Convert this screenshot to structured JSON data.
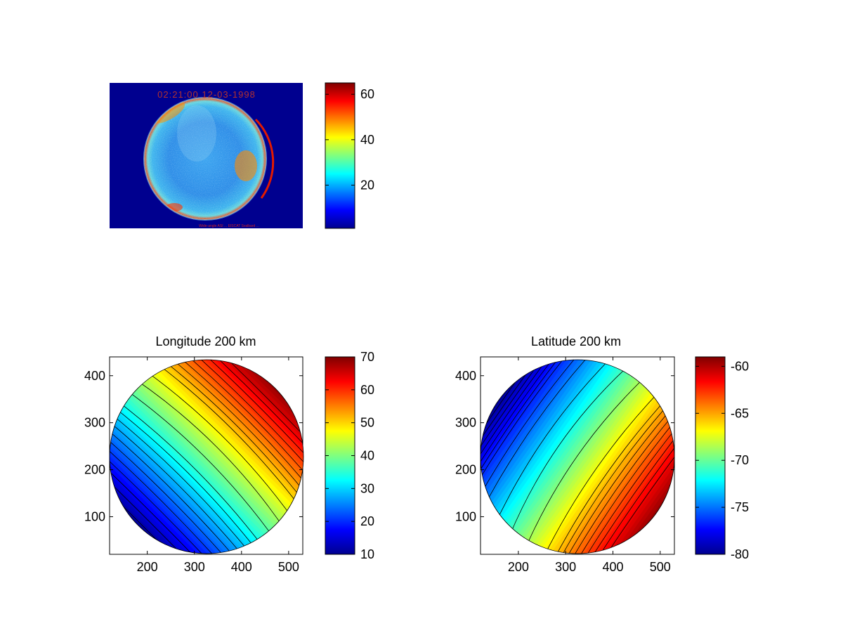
{
  "chart_data": [
    {
      "type": "heatmap",
      "panel": "all-sky-image",
      "title": "",
      "timestamp_text": "02:21:00 12-03-1998",
      "footer_text": "Wide-angle ASI ... EISCAT Svalbard ...",
      "colorbar": {
        "min": 1,
        "max": 65,
        "ticks": [
          20,
          40,
          60
        ]
      },
      "image_shows": "circular all-sky airglow/aurora image, mostly blue/cyan with red-orange arcs at the rim"
    },
    {
      "type": "heatmap",
      "panel": "longitude",
      "title": "Longitude 200 km",
      "xlim": [
        120,
        530
      ],
      "ylim": [
        20,
        440
      ],
      "xticks": [
        200,
        300,
        400,
        500
      ],
      "yticks": [
        100,
        200,
        300,
        400
      ],
      "colorbar": {
        "min": 10,
        "max": 70,
        "ticks": [
          10,
          20,
          30,
          40,
          50,
          60,
          70
        ]
      },
      "disk": {
        "center": [
          324,
          228
        ],
        "radius": 204
      },
      "gradient_angle_deg": -45,
      "contour_levels": [
        12,
        14,
        16,
        18,
        20,
        22,
        24,
        26,
        28,
        30,
        32,
        36,
        40,
        44,
        48,
        50,
        52,
        54,
        56,
        58,
        60,
        62,
        64
      ]
    },
    {
      "type": "heatmap",
      "panel": "latitude",
      "title": "Latitude 200 km",
      "xlim": [
        120,
        530
      ],
      "ylim": [
        20,
        440
      ],
      "xticks": [
        200,
        300,
        400,
        500
      ],
      "yticks": [
        100,
        200,
        300,
        400
      ],
      "colorbar": {
        "min": -80,
        "max": -59,
        "ticks": [
          -80,
          -75,
          -70,
          -65,
          -60
        ]
      },
      "disk": {
        "center": [
          324,
          228
        ],
        "radius": 204
      },
      "gradient_angle_deg": 35,
      "contour_levels": [
        -79,
        -78.5,
        -78,
        -77.5,
        -77,
        -76.5,
        -76,
        -75,
        -74,
        -72,
        -70,
        -68,
        -66,
        -65,
        -64.5,
        -64,
        -63.5,
        -63,
        -62.5,
        -62,
        -61.5,
        -61
      ]
    }
  ]
}
